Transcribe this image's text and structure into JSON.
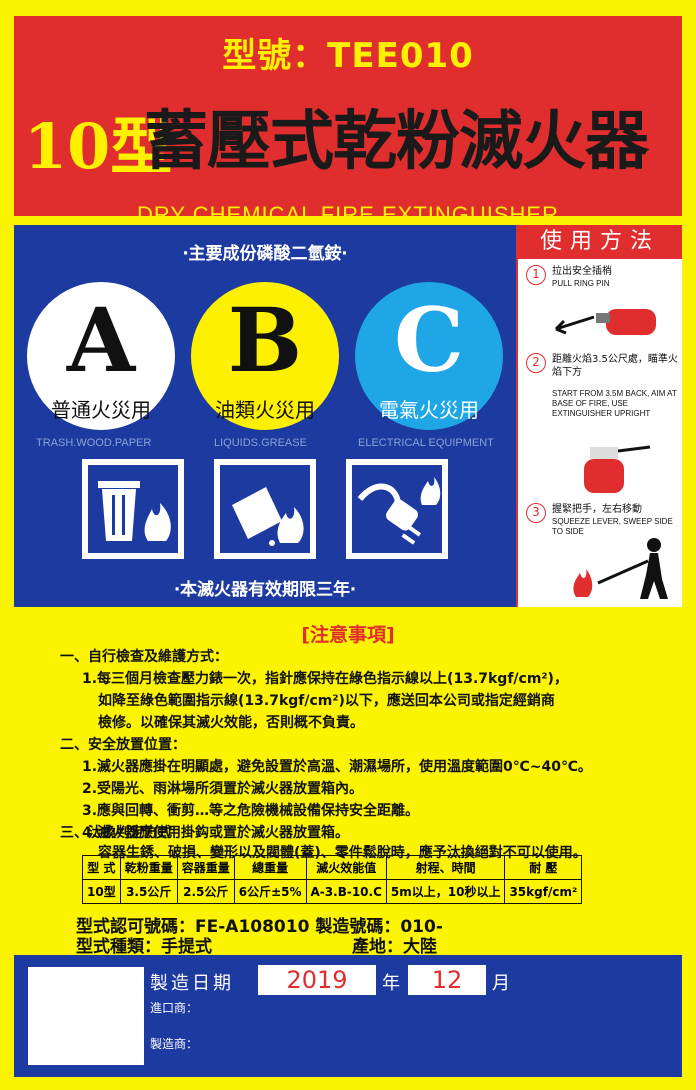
{
  "header": {
    "model": "型號：TEE010",
    "title_num": "10型",
    "title_main": "蓄壓式乾粉滅火器",
    "title_en": "DRY CHEMICAL FIRE EXTINGUISHER"
  },
  "panel": {
    "ingredient": "‧主要成份磷酸二氫銨‧",
    "classes": [
      {
        "letter": "A",
        "type": "普通火災用",
        "en": "TRASH.WOOD.PAPER",
        "color": "#ffffff",
        "icon": "trash-fire-icon"
      },
      {
        "letter": "B",
        "type": "油類火災用",
        "en": "LIQUIDS.GREASE",
        "color": "#fdf100",
        "icon": "oil-fire-icon"
      },
      {
        "letter": "C",
        "type": "電氣火災用",
        "en": "ELECTRICAL EQUIPMENT",
        "color": "#1fa6e6",
        "icon": "electric-fire-icon"
      }
    ],
    "validity": "‧本滅火器有效期限三年‧"
  },
  "usage": {
    "title": "使用方法",
    "steps": [
      {
        "num": "1",
        "zh": "拉出安全插梢",
        "en": "PULL RING PIN"
      },
      {
        "num": "2",
        "zh": "距離火焰3.5公尺處，瞄準火焰下方",
        "en": "START FROM 3.5M BACK, AIM AT BASE OF FIRE, USE EXTINGUISHER UPRIGHT"
      },
      {
        "num": "3",
        "zh": "握緊把手，左右移動",
        "en": "SQUEEZE LEVER, SWEEP SIDE TO SIDE"
      }
    ]
  },
  "notice": {
    "title": "[注意事項]",
    "s1": "一、自行檢查及維護方式：",
    "s1_l1": "1.每三個月檢查壓力錶一次，指針應保持在綠色指示線以上(13.7kgf/cm²)，",
    "s1_l2": "如降至綠色範圍指示線(13.7kgf/cm²)以下，應送回本公司或指定經銷商",
    "s1_l3": "檢修。以確保其滅火效能，否則概不負責。",
    "s2": "二、安全放置位置：",
    "s2_l1": "1.滅火器應掛在明顯處，避免設置於高溫、潮濕場所，使用溫度範圍0℃~40℃。",
    "s2_l2": "2.受陽光、雨淋場所須置於滅火器放置箱內。",
    "s2_l3": "3.應與回轉、衝剪…等之危險機械設備保持安全距離。",
    "s2_l4": "4.滅火器應使用掛鈎或置於滅火器放置箱。",
    "s3": "三、汰換判定方式",
    "s3_l1": "容器生銹、破損、變形以及閥體(蓋)、零件鬆脫時，應予汰換絕對不可以使用。"
  },
  "spec_table": {
    "headers": [
      "型 式",
      "乾粉重量",
      "容器重量",
      "總重量",
      "滅火效能值",
      "射程、時間",
      "耐 壓"
    ],
    "row": [
      "10型",
      "3.5公斤",
      "2.5公斤",
      "6公斤±5%",
      "A-3.B-10.C",
      "5m以上，10秒以上",
      "35kgf/cm²"
    ]
  },
  "approval": {
    "line1": "型式認可號碼：FE-A108010 製造號碼：010-",
    "line2": "型式種類：手提式",
    "origin": "產地：大陸"
  },
  "footer": {
    "date_label": "製造日期",
    "year": "2019",
    "year_label": "年",
    "month": "12",
    "month_label": "月",
    "importer_label": "進口商：",
    "maker_label": "製造商："
  }
}
